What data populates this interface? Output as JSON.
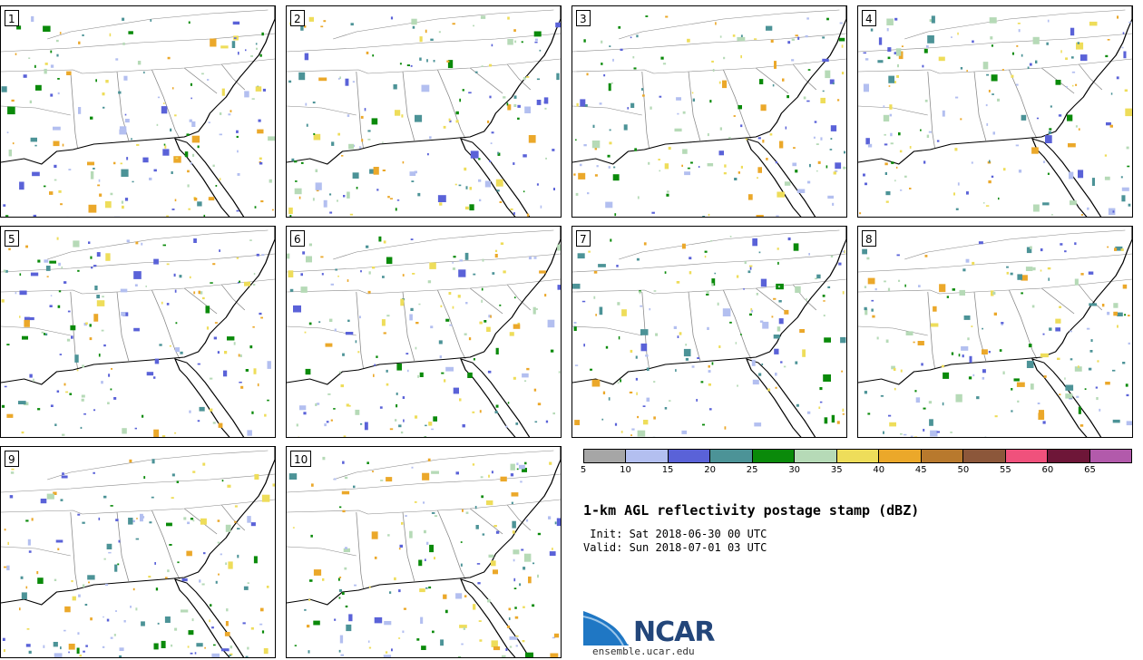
{
  "panels": [
    {
      "label": "1"
    },
    {
      "label": "2"
    },
    {
      "label": "3"
    },
    {
      "label": "4"
    },
    {
      "label": "5"
    },
    {
      "label": "6"
    },
    {
      "label": "7"
    },
    {
      "label": "8"
    },
    {
      "label": "9"
    },
    {
      "label": "10"
    }
  ],
  "colorbar": {
    "colors": [
      "#a6a6a6",
      "#b3bff0",
      "#5a62d8",
      "#4c9397",
      "#0a8a0a",
      "#b6dab7",
      "#eedd5a",
      "#eba82a",
      "#b8792d",
      "#8c573a",
      "#f0517c",
      "#6e1638",
      "#b25aab"
    ],
    "tick_labels": [
      "5",
      "10",
      "15",
      "20",
      "25",
      "30",
      "35",
      "40",
      "45",
      "50",
      "55",
      "60",
      "65"
    ]
  },
  "title": "1-km AGL reflectivity postage stamp (dBZ)",
  "init_line": " Init: Sat 2018-06-30 00 UTC",
  "valid_line": "Valid: Sun 2018-07-01 03 UTC",
  "logo": {
    "name": "NCAR",
    "url": "ensemble.ucar.edu",
    "colors": [
      "#1f77c4",
      "#23467a"
    ]
  }
}
